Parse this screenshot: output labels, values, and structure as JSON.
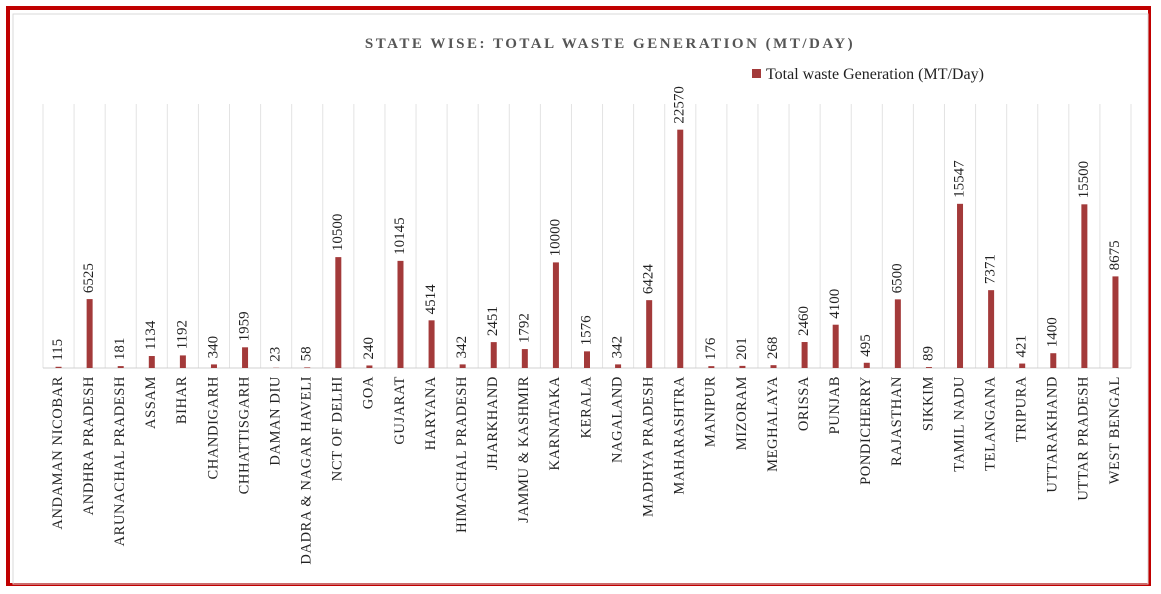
{
  "chart_data": {
    "type": "bar",
    "title": "STATE WISE: TOTAL WASTE GENERATION (MT/DAY)",
    "categories": [
      "ANDAMAN NICOBAR",
      "ANDHRA PRADESH",
      "ARUNACHAL PRADESH",
      "ASSAM",
      "BIHAR",
      "CHANDIGARH",
      "CHHATTISGARH",
      "DAMAN DIU",
      "DADRA & NAGAR HAVELI",
      "NCT OF DELHI",
      "GOA",
      "GUJARAT",
      "HARYANA",
      "HIMACHAL PRADESH",
      "JHARKHAND",
      "JAMMU & KASHMIR",
      "KARNATAKA",
      "KERALA",
      "NAGALAND",
      "MADHYA PRADESH",
      "MAHARASHTRA",
      "MANIPUR",
      "MIZORAM",
      "MEGHALAYA",
      "ORISSA",
      "PUNJAB",
      "PONDICHERRY",
      "RAJASTHAN",
      "SIKKIM",
      "TAMIL NADU",
      "TELANGANA",
      "TRIPURA",
      "UTTARAKHAND",
      "UTTAR PRADESH",
      "WEST BENGAL"
    ],
    "series": [
      {
        "name": "Total waste Generation (MT/Day)",
        "color": "#a33a3a",
        "values": [
          115,
          6525,
          181,
          1134,
          1192,
          340,
          1959,
          23,
          58,
          10500,
          240,
          10145,
          4514,
          342,
          2451,
          1792,
          10000,
          1576,
          342,
          6424,
          22570,
          176,
          201,
          268,
          2460,
          4100,
          495,
          6500,
          89,
          15547,
          7371,
          421,
          1400,
          15500,
          8675
        ]
      }
    ],
    "ylim": [
      0,
      25000
    ],
    "legend": "top-right",
    "grid": true
  }
}
